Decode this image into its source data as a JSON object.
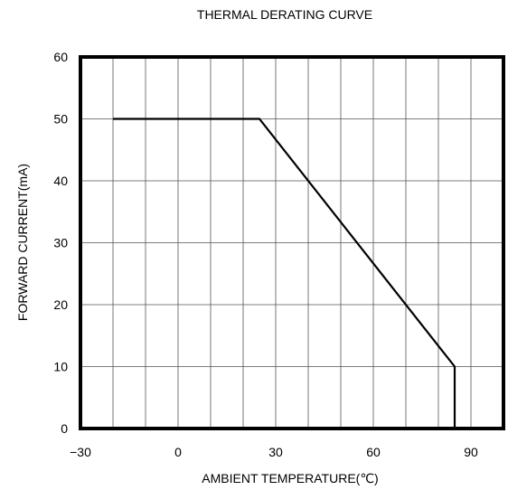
{
  "chart_data": {
    "type": "line",
    "title": "THERMAL DERATING CURVE",
    "xlabel": "AMBIENT TEMPERATURE(℃)",
    "ylabel": "FORWARD CURRENT(mA)",
    "xlim": [
      -30,
      100
    ],
    "ylim": [
      0,
      60
    ],
    "xticks": [
      -30,
      0,
      30,
      60,
      90
    ],
    "xtick_labels": [
      "−30",
      "0",
      "30",
      "60",
      "90"
    ],
    "yticks": [
      0,
      10,
      20,
      30,
      40,
      50,
      60
    ],
    "yticks_labels": [
      "0",
      "10",
      "20",
      "30",
      "40",
      "50",
      "60"
    ],
    "grid": true,
    "x_grid_step": 10,
    "y_grid_step": 10,
    "series": [
      {
        "x": [
          -20,
          25,
          85,
          85
        ],
        "y": [
          50,
          50,
          10,
          0
        ],
        "color": "#000000"
      }
    ]
  }
}
